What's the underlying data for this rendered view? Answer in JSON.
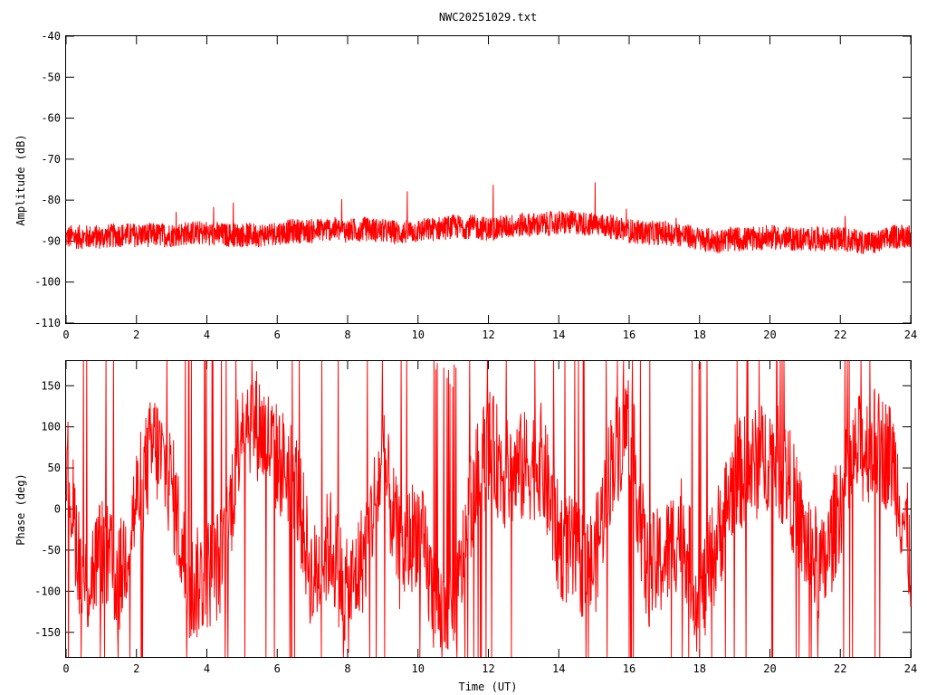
{
  "title": "NWC20251029.txt",
  "colors": {
    "series": "#ff0000",
    "axes": "#000000",
    "background": "#ffffff"
  },
  "chart_data": [
    {
      "type": "line",
      "title": "NWC20251029.txt",
      "xlabel": "",
      "ylabel": "Amplitude (dB)",
      "xlim": [
        0,
        24
      ],
      "ylim": [
        -110,
        -40
      ],
      "xticks": [
        "0",
        "2",
        "4",
        "6",
        "8",
        "10",
        "12",
        "14",
        "16",
        "18",
        "20",
        "22",
        "24"
      ],
      "yticks": [
        "-40",
        "-50",
        "-60",
        "-70",
        "-80",
        "-90",
        "-100",
        "-110"
      ],
      "grid": false,
      "legend": "none",
      "series": [
        {
          "x": [
            0,
            0.5,
            1,
            1.5,
            2,
            2.5,
            3,
            3.5,
            4,
            4.5,
            5,
            5.5,
            6,
            6.5,
            7,
            7.5,
            8,
            8.5,
            9,
            9.5,
            10,
            10.5,
            11,
            11.5,
            12,
            12.5,
            13,
            13.5,
            14,
            14.5,
            15,
            15.5,
            16,
            16.5,
            17,
            17.5,
            18,
            18.5,
            19,
            19.5,
            20,
            20.5,
            21,
            21.5,
            22,
            22.5,
            23,
            23.5,
            24
          ],
          "y": [
            -89,
            -89,
            -89,
            -88.5,
            -88.5,
            -88.5,
            -88.5,
            -88,
            -88,
            -88.5,
            -88.5,
            -88.5,
            -88,
            -87.5,
            -87.5,
            -87,
            -87.5,
            -87,
            -87.5,
            -88,
            -87.5,
            -87,
            -86.5,
            -86.5,
            -87,
            -86.5,
            -86,
            -86,
            -85.5,
            -85.5,
            -86,
            -86.5,
            -87.5,
            -88,
            -88,
            -88.5,
            -89.5,
            -90,
            -89.5,
            -89.5,
            -89,
            -89.5,
            -89.5,
            -89.5,
            -89.5,
            -90,
            -90.5,
            -89,
            -88.5
          ],
          "noise_db": 3
        }
      ]
    },
    {
      "type": "line",
      "xlabel": "Time (UT)",
      "ylabel": "Phase (deg)",
      "xlim": [
        0,
        24
      ],
      "ylim": [
        -180,
        180
      ],
      "xticks": [
        "0",
        "2",
        "4",
        "6",
        "8",
        "10",
        "12",
        "14",
        "16",
        "18",
        "20",
        "22",
        "24"
      ],
      "yticks": [
        "150",
        "100",
        "50",
        "0",
        "-50",
        "-100",
        "-150"
      ],
      "grid": false,
      "legend": "none",
      "series": [
        {
          "x": [
            0,
            0.5,
            1,
            1.5,
            2,
            2.5,
            3,
            3.5,
            4,
            4.5,
            5,
            5.5,
            6,
            6.5,
            7,
            7.5,
            8,
            8.5,
            9,
            9.5,
            10,
            10.5,
            11,
            11.5,
            12,
            12.5,
            13,
            13.5,
            14,
            14.5,
            15,
            15.5,
            16,
            16.5,
            17,
            17.5,
            18,
            18.5,
            19,
            19.5,
            20,
            20.5,
            21,
            21.5,
            22,
            22.5,
            23,
            23.5,
            24
          ],
          "y": [
            60,
            -100,
            -50,
            -90,
            10,
            80,
            30,
            -100,
            -80,
            -60,
            120,
            100,
            60,
            40,
            -90,
            -40,
            -110,
            -50,
            60,
            -60,
            -20,
            -120,
            -150,
            10,
            80,
            40,
            50,
            60,
            -40,
            -60,
            -70,
            60,
            110,
            -80,
            -60,
            -20,
            -120,
            -40,
            40,
            50,
            70,
            40,
            -40,
            -80,
            10,
            70,
            80,
            60,
            -60
          ],
          "noise_deg": 70,
          "wraps": true
        }
      ]
    }
  ]
}
